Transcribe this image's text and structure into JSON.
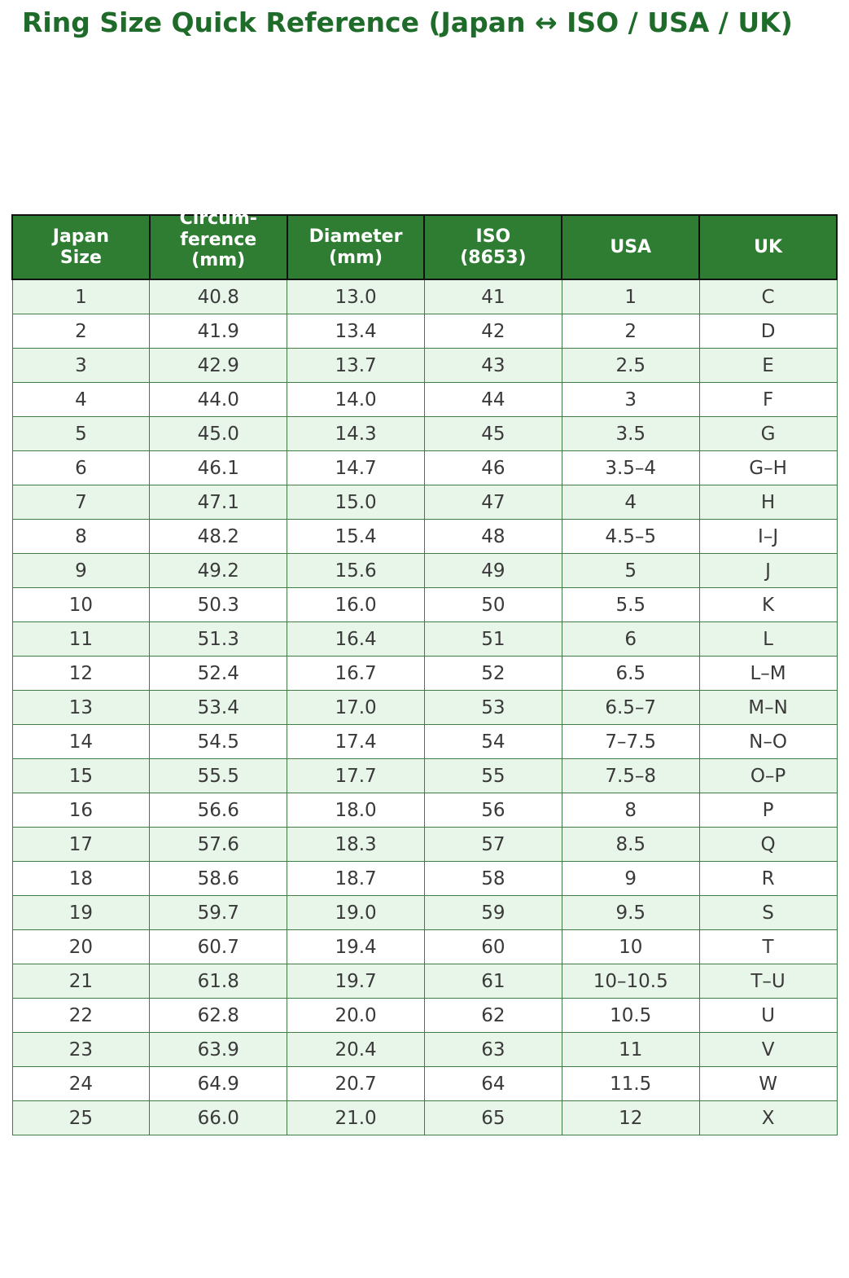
{
  "title": "Ring Size Quick Reference (Japan ↔ ISO / USA / UK)",
  "colors": {
    "header_bg": "#2e7d32",
    "header_border": "#111111",
    "body_border": "#3f7b42",
    "row_alt_bg": "#e8f5e9",
    "row_bg": "#ffffff",
    "title_color": "#1e6b2a",
    "body_text": "#3a3a3a"
  },
  "table": {
    "headers": [
      "Japan\nSize",
      "Circum-\nference\n(mm)",
      "Diameter\n(mm)",
      "ISO\n(8653)",
      "USA",
      "UK"
    ],
    "rows": [
      [
        "1",
        "40.8",
        "13.0",
        "41",
        "1",
        "C"
      ],
      [
        "2",
        "41.9",
        "13.4",
        "42",
        "2",
        "D"
      ],
      [
        "3",
        "42.9",
        "13.7",
        "43",
        "2.5",
        "E"
      ],
      [
        "4",
        "44.0",
        "14.0",
        "44",
        "3",
        "F"
      ],
      [
        "5",
        "45.0",
        "14.3",
        "45",
        "3.5",
        "G"
      ],
      [
        "6",
        "46.1",
        "14.7",
        "46",
        "3.5–4",
        "G–H"
      ],
      [
        "7",
        "47.1",
        "15.0",
        "47",
        "4",
        "H"
      ],
      [
        "8",
        "48.2",
        "15.4",
        "48",
        "4.5–5",
        "I–J"
      ],
      [
        "9",
        "49.2",
        "15.6",
        "49",
        "5",
        "J"
      ],
      [
        "10",
        "50.3",
        "16.0",
        "50",
        "5.5",
        "K"
      ],
      [
        "11",
        "51.3",
        "16.4",
        "51",
        "6",
        "L"
      ],
      [
        "12",
        "52.4",
        "16.7",
        "52",
        "6.5",
        "L–M"
      ],
      [
        "13",
        "53.4",
        "17.0",
        "53",
        "6.5–7",
        "M–N"
      ],
      [
        "14",
        "54.5",
        "17.4",
        "54",
        "7–7.5",
        "N–O"
      ],
      [
        "15",
        "55.5",
        "17.7",
        "55",
        "7.5–8",
        "O–P"
      ],
      [
        "16",
        "56.6",
        "18.0",
        "56",
        "8",
        "P"
      ],
      [
        "17",
        "57.6",
        "18.3",
        "57",
        "8.5",
        "Q"
      ],
      [
        "18",
        "58.6",
        "18.7",
        "58",
        "9",
        "R"
      ],
      [
        "19",
        "59.7",
        "19.0",
        "59",
        "9.5",
        "S"
      ],
      [
        "20",
        "60.7",
        "19.4",
        "60",
        "10",
        "T"
      ],
      [
        "21",
        "61.8",
        "19.7",
        "61",
        "10–10.5",
        "T–U"
      ],
      [
        "22",
        "62.8",
        "20.0",
        "62",
        "10.5",
        "U"
      ],
      [
        "23",
        "63.9",
        "20.4",
        "63",
        "11",
        "V"
      ],
      [
        "24",
        "64.9",
        "20.7",
        "64",
        "11.5",
        "W"
      ],
      [
        "25",
        "66.0",
        "21.0",
        "65",
        "12",
        "X"
      ]
    ]
  }
}
